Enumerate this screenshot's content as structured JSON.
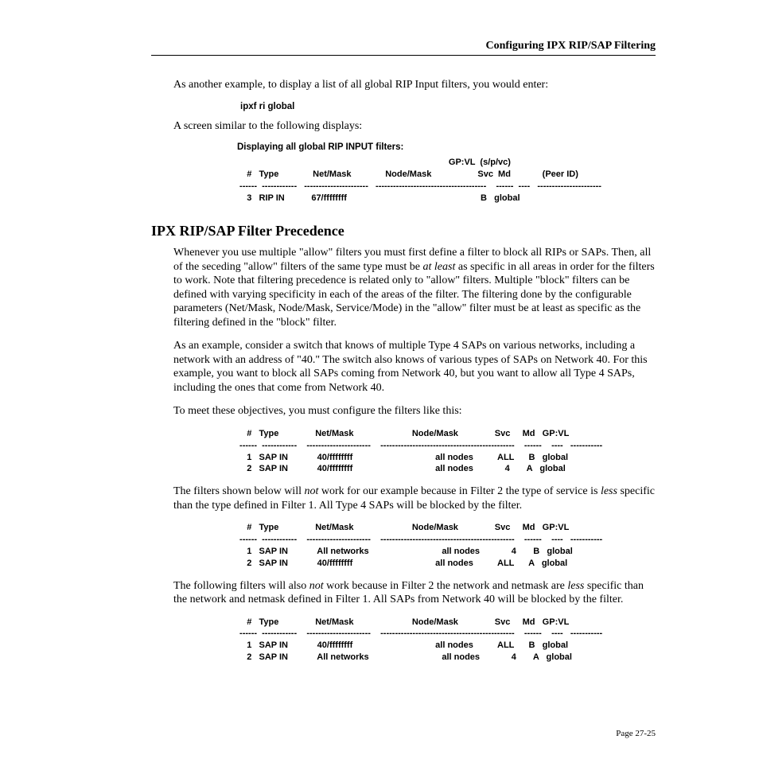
{
  "header": {
    "running_title": "Configuring IPX RIP/SAP Filtering"
  },
  "intro": {
    "p1": "As another example, to display a list of all global RIP Input filters, you would enter:",
    "cmd1": "ipxf ri global",
    "p2": "A screen similar to the following displays:"
  },
  "table1": {
    "caption": "Displaying all global RIP INPUT filters:",
    "super_header": "                                                                                       GP:VL  (s/p/vc)",
    "header": "    #   Type              Net/Mask              Node/Mask                   Svc  Md             (Peer ID)",
    "dash": " ------  ------------   ----------------------   --------------------------------------    ------  ----   ----------------------",
    "row1": "    3   RIP IN           67/ffffffff                                                       B   global"
  },
  "section": {
    "heading": "IPX RIP/SAP Filter Precedence",
    "p1a": "Whenever you use multiple \"allow\" filters you must first define a filter to block all RIPs or SAPs. Then, all of the seceding \"allow\" filters of the same type must be ",
    "p1b_italic": "at least",
    "p1c": " as specific in all areas in order for the filters to work. Note that filtering precedence is related only to \"allow\" filters. Multiple \"block\" filters can be defined with varying specificity in each of the areas of the filter. The filtering done by the configurable parameters (Net/Mask, Node/Mask, Service/Mode) in the \"allow\" filter must be at least as specific as the filtering defined in the \"block\" filter.",
    "p2": "As an example, consider a switch that knows of multiple Type 4 SAPs on various networks, including a network with an address of \"40.\" The switch also knows of various types of SAPs on Network 40. For this example, you want to block all SAPs coming from Network 40, but you want to allow all Type 4 SAPs, including the ones that come from Network 40.",
    "p3": "To meet these objectives, you must configure the filters like this:"
  },
  "table2": {
    "header": "    #   Type               Net/Mask                        Node/Mask               Svc     Md   GP:VL",
    "dash": " ------  ------------    ----------------------    ----------------------------------------------    ------    ----   -----------",
    "row1": "    1   SAP IN            40/ffffffff                                  all nodes          ALL      B   global",
    "row2": "    2   SAP IN            40/ffffffff                                  all nodes             4       A   global"
  },
  "mid": {
    "p4a": "The filters shown below will ",
    "p4b_italic": "not",
    "p4c": " work for our example because in Filter 2 the type of service is ",
    "p4d_italic": "less",
    "p4e": " specific than the type defined in Filter 1. All Type 4 SAPs will be blocked by the filter."
  },
  "table3": {
    "header": "    #   Type               Net/Mask                        Node/Mask               Svc     Md   GP:VL",
    "dash": " ------  ------------    ----------------------    ----------------------------------------------    ------    ----   -----------",
    "row1": "    1   SAP IN            All networks                              all nodes             4       B   global",
    "row2": "    2   SAP IN            40/ffffffff                                  all nodes          ALL      A   global"
  },
  "mid2": {
    "p5a": "The following filters will also ",
    "p5b_italic": "not",
    "p5c": " work because in Filter 2 the network and netmask are ",
    "p5d_italic": "less",
    "p5e": " specific than the network and netmask defined in Filter 1. All SAPs from Network 40 will be blocked by the filter."
  },
  "table4": {
    "header": "    #   Type               Net/Mask                        Node/Mask               Svc     Md   GP:VL",
    "dash": " ------  ------------    ----------------------    ----------------------------------------------    ------    ----   -----------",
    "row1": "    1   SAP IN            40/ffffffff                                  all nodes          ALL      B   global",
    "row2": "    2   SAP IN            All networks                              all nodes             4       A   global"
  },
  "footer": {
    "page_num": "Page 27-25"
  }
}
